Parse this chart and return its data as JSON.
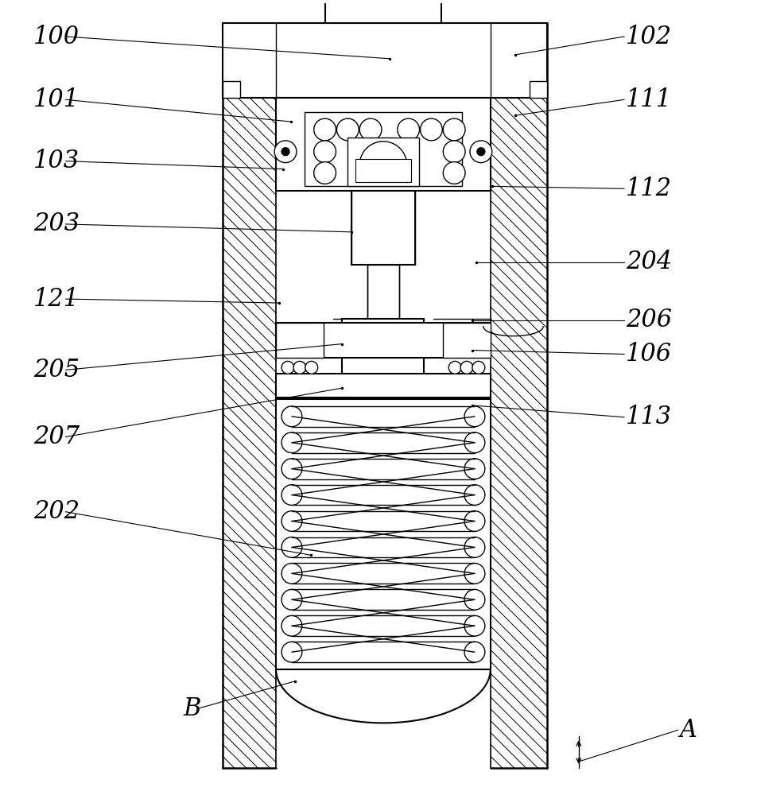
{
  "bg_color": "#ffffff",
  "lc": "#000000",
  "figw": 9.52,
  "figh": 10.0,
  "dpi": 100,
  "left_labels": [
    [
      "100",
      38,
      958
    ],
    [
      "101",
      38,
      878
    ],
    [
      "103",
      38,
      800
    ],
    [
      "203",
      38,
      720
    ],
    [
      "121",
      38,
      625
    ],
    [
      "205",
      38,
      535
    ],
    [
      "207",
      38,
      450
    ],
    [
      "202",
      38,
      355
    ]
  ],
  "right_labels": [
    [
      "102",
      790,
      958
    ],
    [
      "111",
      790,
      878
    ],
    [
      "112",
      790,
      765
    ],
    [
      "204",
      790,
      672
    ],
    [
      "206",
      790,
      598
    ],
    [
      "106",
      790,
      555
    ],
    [
      "113",
      790,
      475
    ]
  ],
  "label_B": [
    "B",
    228,
    105
  ],
  "label_A": [
    "A",
    858,
    78
  ]
}
